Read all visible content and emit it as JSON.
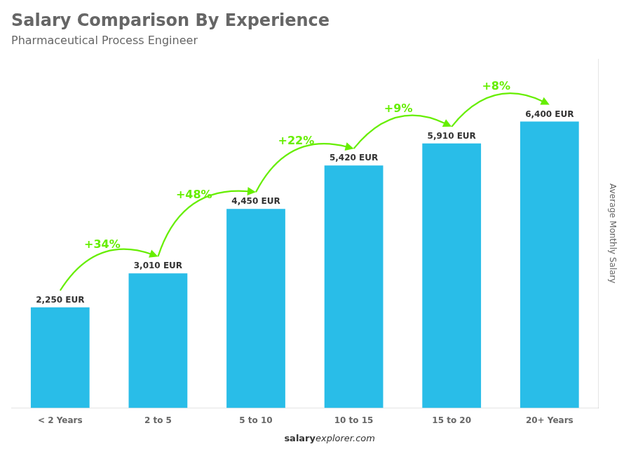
{
  "chart_data": {
    "type": "bar",
    "title": "Salary Comparison By Experience",
    "subtitle": "Pharmaceutical Process Engineer",
    "categories": [
      "< 2 Years",
      "2 to 5",
      "5 to 10",
      "10 to 15",
      "15 to 20",
      "20+ Years"
    ],
    "values": [
      2250,
      3010,
      4450,
      5420,
      5910,
      6400
    ],
    "value_labels": [
      "2,250 EUR",
      "3,010 EUR",
      "4,450 EUR",
      "5,420 EUR",
      "5,910 EUR",
      "6,400 EUR"
    ],
    "data_labels": true,
    "color": "#29bde8",
    "ylabel": "Average Monthly Salary",
    "ylim": [
      0,
      7800
    ],
    "tick_labels": "x",
    "grid": false,
    "annotations": [
      {
        "text": "+34%",
        "from": "< 2 Years",
        "to": "2 to 5",
        "color": "#66ee00"
      },
      {
        "text": "+48%",
        "from": "2 to 5",
        "to": "5 to 10",
        "color": "#66ee00"
      },
      {
        "text": "+22%",
        "from": "5 to 10",
        "to": "10 to 15",
        "color": "#66ee00"
      },
      {
        "text": "+9%",
        "from": "10 to 15",
        "to": "15 to 20",
        "color": "#66ee00"
      },
      {
        "text": "+8%",
        "from": "15 to 20",
        "to": "20+ Years",
        "color": "#66ee00"
      }
    ],
    "footer": [
      "salary",
      "explorer.com"
    ]
  }
}
